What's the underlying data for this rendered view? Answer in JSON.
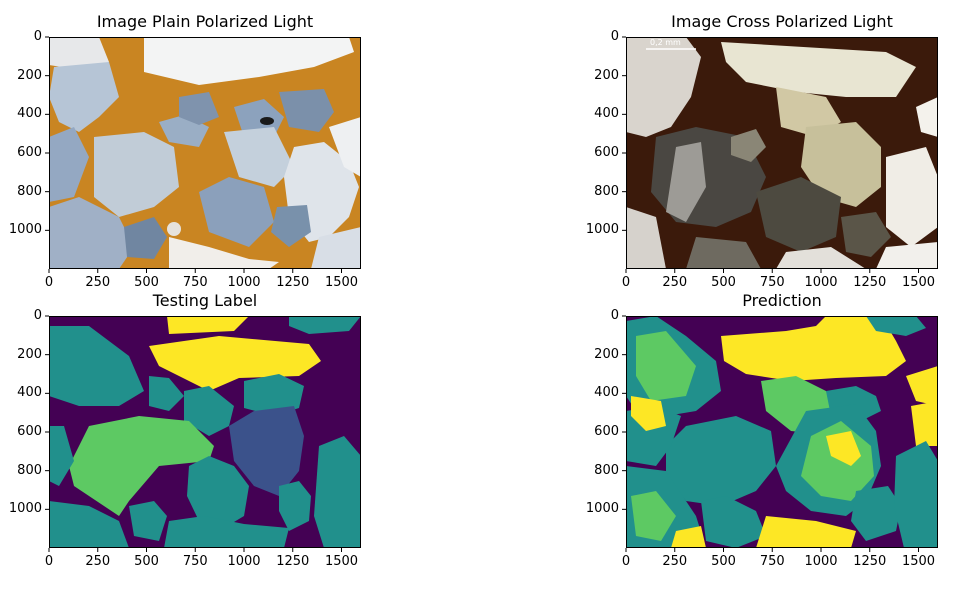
{
  "figure": {
    "panels": [
      {
        "id": "plain",
        "title": "Image Plain Polarized Light"
      },
      {
        "id": "cross",
        "title": "Image Cross Polarized Light"
      },
      {
        "id": "label",
        "title": "Testing Label"
      },
      {
        "id": "pred",
        "title": "Prediction"
      }
    ],
    "x_ticks": [
      "0",
      "250",
      "500",
      "750",
      "1000",
      "1250",
      "1500"
    ],
    "y_ticks": [
      "0",
      "200",
      "400",
      "600",
      "800",
      "1000"
    ],
    "scale_bar_text": "0,2 mm",
    "colors": {
      "class_dark": "#440154",
      "class_blue": "#3b528b",
      "class_teal": "#21908c",
      "class_green": "#5dc963",
      "class_yellow": "#fde725"
    }
  }
}
